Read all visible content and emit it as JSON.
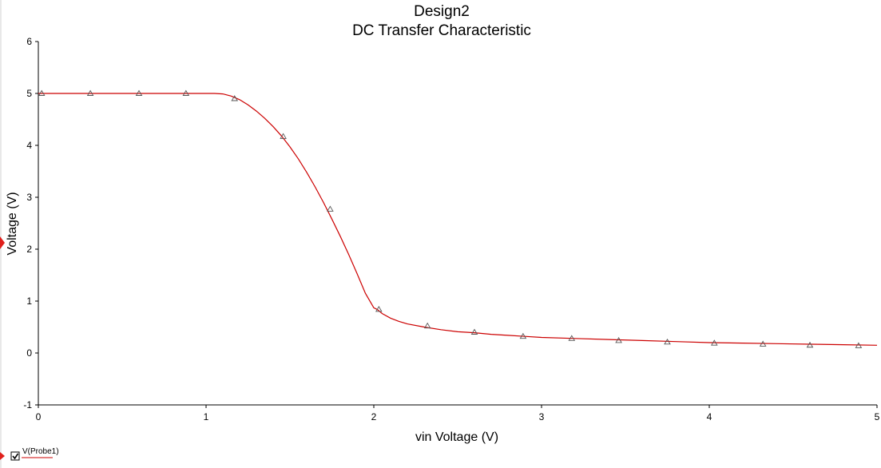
{
  "chart_data": {
    "type": "line",
    "title": "Design2",
    "subtitle": "DC Transfer Characteristic",
    "xlabel": "vin Voltage (V)",
    "ylabel": "Voltage (V)",
    "xlim": [
      0,
      5
    ],
    "ylim": [
      -1,
      6
    ],
    "xticks": [
      "0",
      "1",
      "2",
      "3",
      "4",
      "5"
    ],
    "yticks": [
      "-1",
      "0",
      "1",
      "2",
      "3",
      "4",
      "5",
      "6"
    ],
    "grid": false,
    "legend_position": "bottom-left",
    "series": [
      {
        "name": "V(Probe1)",
        "color": "#cc0000",
        "marker": "triangle",
        "x": [
          0,
          0.1,
          0.2,
          0.3,
          0.4,
          0.5,
          0.6,
          0.7,
          0.8,
          0.9,
          1.0,
          1.05,
          1.1,
          1.15,
          1.2,
          1.25,
          1.3,
          1.35,
          1.4,
          1.45,
          1.5,
          1.55,
          1.6,
          1.65,
          1.7,
          1.75,
          1.8,
          1.85,
          1.9,
          1.95,
          2.0,
          2.02,
          2.05,
          2.1,
          2.15,
          2.2,
          2.3,
          2.4,
          2.5,
          2.6,
          2.7,
          2.8,
          2.9,
          3.0,
          3.2,
          3.4,
          3.6,
          3.8,
          4.0,
          4.2,
          4.4,
          4.6,
          4.8,
          5.0
        ],
        "y": [
          5.0,
          5.0,
          5.0,
          5.0,
          5.0,
          5.0,
          5.0,
          5.0,
          5.0,
          5.0,
          5.0,
          5.0,
          4.99,
          4.95,
          4.88,
          4.78,
          4.66,
          4.52,
          4.36,
          4.18,
          3.97,
          3.74,
          3.48,
          3.2,
          2.9,
          2.58,
          2.25,
          1.9,
          1.53,
          1.15,
          0.87,
          0.84,
          0.76,
          0.67,
          0.61,
          0.56,
          0.5,
          0.45,
          0.41,
          0.39,
          0.36,
          0.34,
          0.32,
          0.3,
          0.28,
          0.26,
          0.24,
          0.22,
          0.2,
          0.19,
          0.18,
          0.17,
          0.16,
          0.15
        ],
        "markers": [
          {
            "x": 0.02,
            "y": 5.0
          },
          {
            "x": 0.31,
            "y": 5.0
          },
          {
            "x": 0.6,
            "y": 5.0
          },
          {
            "x": 0.88,
            "y": 5.0
          },
          {
            "x": 1.17,
            "y": 4.9
          },
          {
            "x": 1.46,
            "y": 4.17
          },
          {
            "x": 1.74,
            "y": 2.77
          },
          {
            "x": 2.03,
            "y": 0.84
          },
          {
            "x": 2.32,
            "y": 0.52
          },
          {
            "x": 2.6,
            "y": 0.4
          },
          {
            "x": 2.89,
            "y": 0.32
          },
          {
            "x": 3.18,
            "y": 0.28
          },
          {
            "x": 3.46,
            "y": 0.24
          },
          {
            "x": 3.75,
            "y": 0.21
          },
          {
            "x": 4.03,
            "y": 0.19
          },
          {
            "x": 4.32,
            "y": 0.17
          },
          {
            "x": 4.6,
            "y": 0.15
          },
          {
            "x": 4.89,
            "y": 0.14
          }
        ]
      }
    ]
  },
  "legend": {
    "entries": [
      {
        "label": "V(Probe1)",
        "checked": true,
        "color": "#cc0000"
      }
    ]
  }
}
